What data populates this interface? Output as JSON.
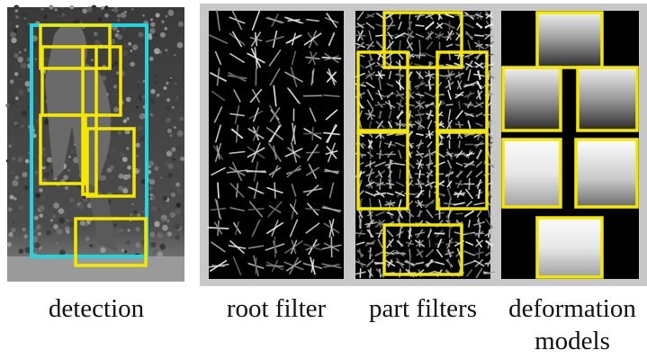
{
  "figure": {
    "panels": [
      {
        "caption": [
          "detection"
        ]
      },
      {
        "caption": [
          "root filter"
        ]
      },
      {
        "caption": [
          "part filters"
        ]
      },
      {
        "caption": [
          "deformation",
          "models"
        ]
      }
    ]
  }
}
